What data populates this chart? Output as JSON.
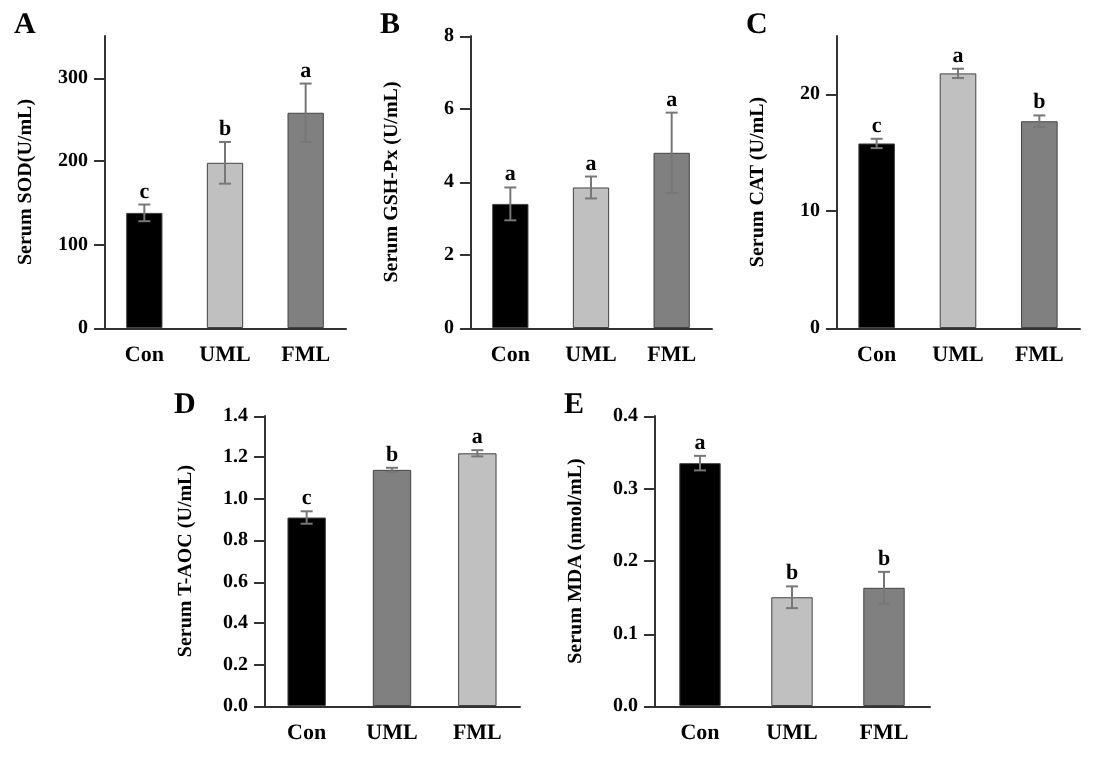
{
  "chart_data": [
    {
      "type": "bar",
      "title": "A",
      "ylabel": "Serum SOD(U/mL)",
      "categories": [
        "Con",
        "UML",
        "FML"
      ],
      "values": [
        138,
        198,
        258
      ],
      "errors": [
        10,
        25,
        35
      ],
      "colors": [
        "#000000",
        "#c0c0c0",
        "#808080"
      ],
      "ylim": [
        0,
        350
      ],
      "yticks": [
        0,
        100,
        200,
        300
      ],
      "grid": false,
      "annotations": [
        {
          "text": "c",
          "x": "Con",
          "y": 148
        },
        {
          "text": "b",
          "x": "UML",
          "y": 223
        },
        {
          "text": "a",
          "x": "FML",
          "y": 293
        }
      ]
    },
    {
      "type": "bar",
      "title": "B",
      "ylabel": "Serum GSH-Px (U/mL)",
      "categories": [
        "Con",
        "UML",
        "FML"
      ],
      "values": [
        3.4,
        3.85,
        4.8
      ],
      "errors": [
        0.45,
        0.3,
        1.1
      ],
      "colors": [
        "#000000",
        "#c0c0c0",
        "#808080"
      ],
      "ylim": [
        0,
        8
      ],
      "yticks": [
        0,
        2,
        4,
        6,
        8
      ],
      "grid": false,
      "annotations": [
        {
          "text": "a",
          "x": "Con",
          "y": 3.85
        },
        {
          "text": "a",
          "x": "UML",
          "y": 4.15
        },
        {
          "text": "a",
          "x": "FML",
          "y": 5.9
        }
      ]
    },
    {
      "type": "bar",
      "title": "C",
      "ylabel": "Serum CAT (U/mL)",
      "categories": [
        "Con",
        "UML",
        "FML"
      ],
      "values": [
        15.8,
        21.8,
        17.7
      ],
      "errors": [
        0.4,
        0.4,
        0.5
      ],
      "colors": [
        "#000000",
        "#c0c0c0",
        "#808080"
      ],
      "ylim": [
        0,
        25
      ],
      "yticks": [
        0,
        10,
        20
      ],
      "grid": false,
      "annotations": [
        {
          "text": "c",
          "x": "Con",
          "y": 16.2
        },
        {
          "text": "a",
          "x": "UML",
          "y": 22.2
        },
        {
          "text": "b",
          "x": "FML",
          "y": 18.2
        }
      ]
    },
    {
      "type": "bar",
      "title": "D",
      "ylabel": "Serum T-AOC (U/mL)",
      "categories": [
        "Con",
        "UML",
        "FML"
      ],
      "values": [
        0.91,
        1.14,
        1.22
      ],
      "errors": [
        0.03,
        0.01,
        0.015
      ],
      "colors": [
        "#000000",
        "#808080",
        "#c0c0c0"
      ],
      "ylim": [
        0,
        1.4
      ],
      "yticks": [
        {
          "value": 0,
          "label": "0.0"
        },
        {
          "value": 0.2,
          "label": "0.2"
        },
        {
          "value": 0.4,
          "label": "0.4"
        },
        {
          "value": 0.6,
          "label": "0.6"
        },
        {
          "value": 0.8,
          "label": "0.8"
        },
        {
          "value": 1,
          "label": "1.0"
        },
        {
          "value": 1.2,
          "label": "1.2"
        },
        {
          "value": 1.4,
          "label": "1.4"
        }
      ],
      "grid": false,
      "annotations": [
        {
          "text": "c",
          "x": "Con",
          "y": 0.94
        },
        {
          "text": "b",
          "x": "UML",
          "y": 1.15
        },
        {
          "text": "a",
          "x": "FML",
          "y": 1.235
        }
      ]
    },
    {
      "type": "bar",
      "title": "E",
      "ylabel": "Serum MDA (nmol/mL)",
      "categories": [
        "Con",
        "UML",
        "FML"
      ],
      "values": [
        0.335,
        0.15,
        0.163
      ],
      "errors": [
        0.01,
        0.015,
        0.022
      ],
      "colors": [
        "#000000",
        "#c0c0c0",
        "#808080"
      ],
      "ylim": [
        0,
        0.4
      ],
      "yticks": [
        {
          "value": 0,
          "label": "0.0"
        },
        {
          "value": 0.1,
          "label": "0.1"
        },
        {
          "value": 0.2,
          "label": "0.2"
        },
        {
          "value": 0.3,
          "label": "0.3"
        },
        {
          "value": 0.4,
          "label": "0.4"
        }
      ],
      "grid": false,
      "annotations": [
        {
          "text": "a",
          "x": "Con",
          "y": 0.345
        },
        {
          "text": "b",
          "x": "UML",
          "y": 0.165
        },
        {
          "text": "b",
          "x": "FML",
          "y": 0.185
        }
      ]
    }
  ]
}
